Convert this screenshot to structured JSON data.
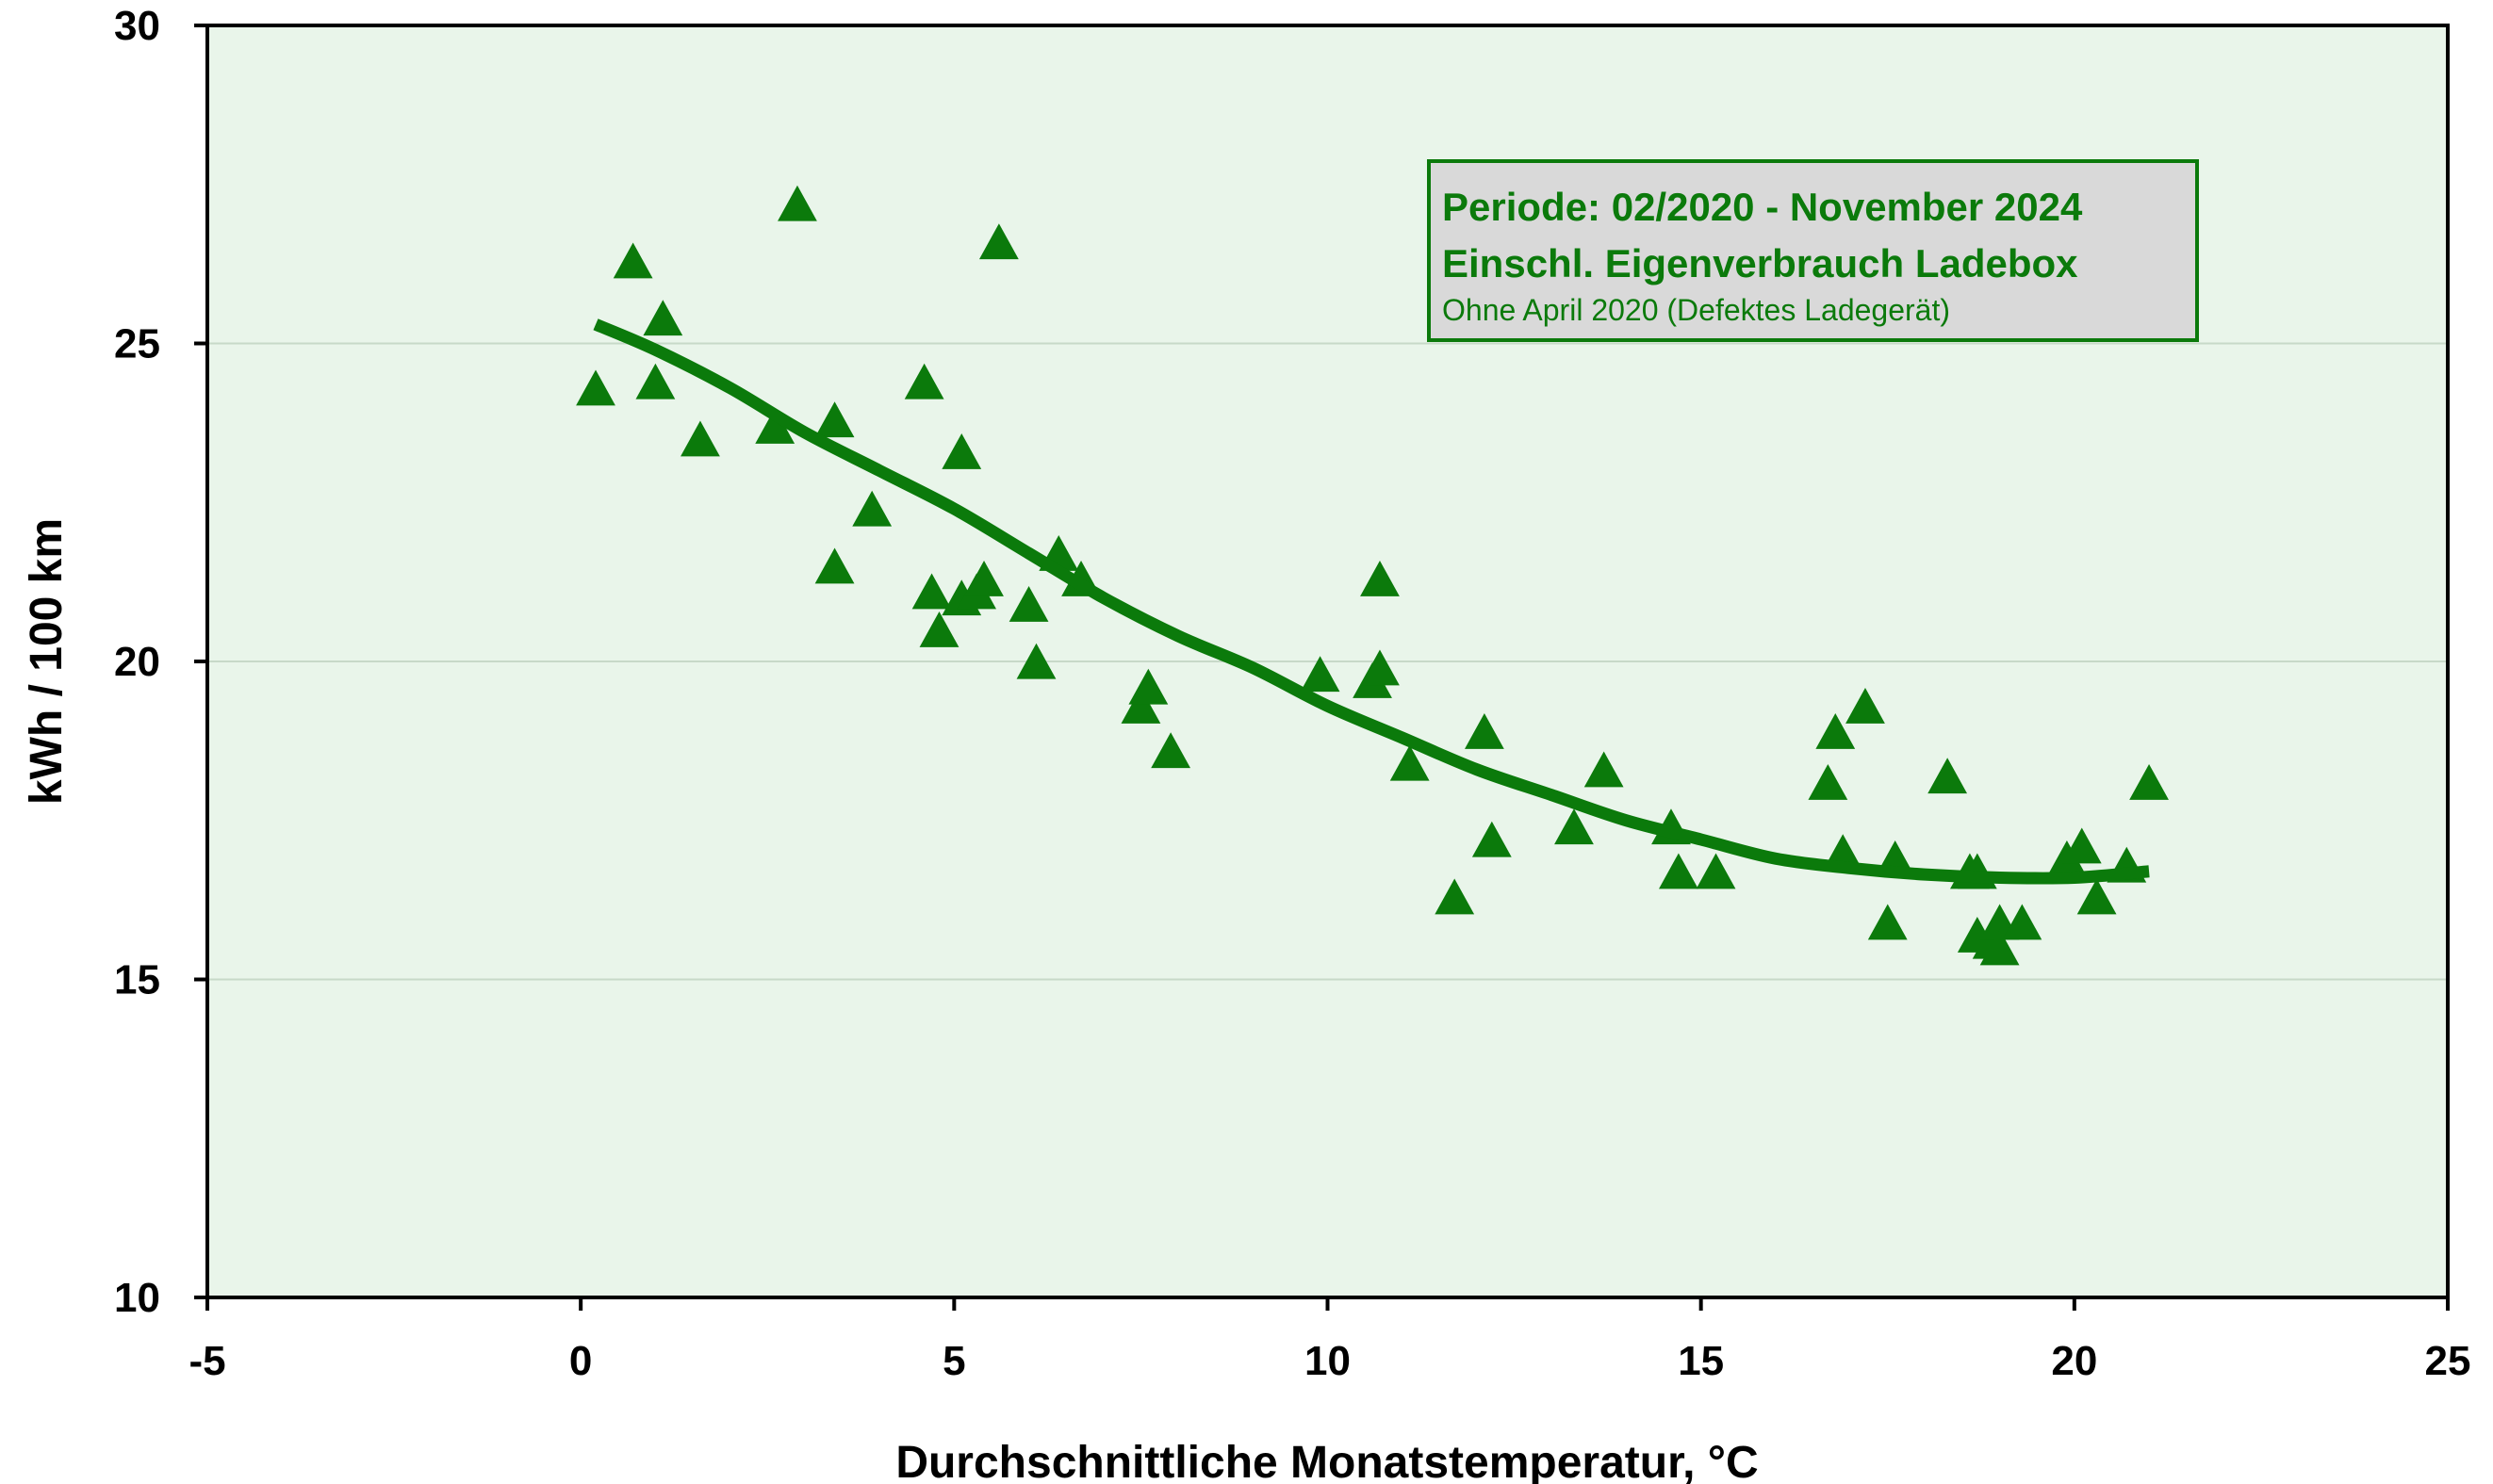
{
  "chart_data": {
    "type": "scatter",
    "title": "",
    "xlabel": "Durchschnittliche Monatstemperatur, °C",
    "ylabel": "kWh / 100 km",
    "xlim": [
      -5,
      25
    ],
    "ylim": [
      10,
      30
    ],
    "xticks": [
      "-5",
      "0",
      "5",
      "10",
      "15",
      "20",
      "25"
    ],
    "yticks": [
      "10",
      "15",
      "20",
      "25",
      "30"
    ],
    "grid": "horizontal",
    "annotation": {
      "line1": "Periode: 02/2020 - November 2024",
      "line2": "Einschl. Eigenverbrauch Ladebox",
      "line3": "Ohne April 2020 (Defektes Ladegerät)",
      "placement": "top-right"
    },
    "colors": {
      "plot_background": "#e9f5ea",
      "marker": "#0b7a0b",
      "trend": "#0b7a0b",
      "annotation_background": "#d9d9d9",
      "annotation_border": "#0b7a0b",
      "gridline": "#c7d9c8"
    },
    "series": [
      {
        "marker": "triangle",
        "points": [
          [
            0.2,
            24.2
          ],
          [
            0.7,
            26.2
          ],
          [
            1.0,
            24.3
          ],
          [
            1.1,
            25.3
          ],
          [
            1.6,
            23.4
          ],
          [
            2.6,
            23.6
          ],
          [
            2.9,
            27.1
          ],
          [
            3.4,
            23.7
          ],
          [
            3.4,
            21.4
          ],
          [
            3.9,
            22.3
          ],
          [
            4.6,
            24.3
          ],
          [
            4.7,
            21.0
          ],
          [
            4.8,
            20.4
          ],
          [
            5.1,
            20.9
          ],
          [
            5.1,
            23.2
          ],
          [
            5.3,
            21.0
          ],
          [
            5.4,
            21.2
          ],
          [
            5.6,
            26.5
          ],
          [
            6.0,
            20.8
          ],
          [
            6.1,
            19.9
          ],
          [
            6.4,
            21.6
          ],
          [
            6.7,
            21.2
          ],
          [
            7.5,
            19.2
          ],
          [
            7.6,
            19.5
          ],
          [
            7.9,
            18.5
          ],
          [
            9.9,
            19.7
          ],
          [
            10.6,
            19.6
          ],
          [
            10.7,
            21.2
          ],
          [
            10.7,
            19.8
          ],
          [
            11.1,
            18.3
          ],
          [
            11.7,
            16.2
          ],
          [
            12.1,
            18.8
          ],
          [
            12.2,
            17.1
          ],
          [
            13.3,
            17.3
          ],
          [
            13.7,
            18.2
          ],
          [
            14.6,
            17.3
          ],
          [
            14.7,
            16.6
          ],
          [
            15.2,
            16.6
          ],
          [
            16.7,
            18.0
          ],
          [
            16.8,
            18.8
          ],
          [
            16.9,
            16.9
          ],
          [
            17.2,
            19.2
          ],
          [
            17.5,
            15.8
          ],
          [
            17.6,
            16.8
          ],
          [
            18.3,
            18.1
          ],
          [
            18.6,
            16.6
          ],
          [
            18.7,
            15.6
          ],
          [
            18.7,
            16.6
          ],
          [
            18.9,
            15.5
          ],
          [
            19.0,
            15.8
          ],
          [
            19.0,
            15.4
          ],
          [
            19.3,
            15.8
          ],
          [
            19.9,
            16.8
          ],
          [
            20.1,
            17.0
          ],
          [
            20.3,
            16.2
          ],
          [
            20.7,
            16.7
          ],
          [
            21.0,
            18.0
          ]
        ]
      }
    ],
    "trendline": {
      "type": "polynomial",
      "points": [
        [
          0.2,
          25.3
        ],
        [
          1,
          24.9
        ],
        [
          2,
          24.3
        ],
        [
          3,
          23.6
        ],
        [
          4,
          23.0
        ],
        [
          5,
          22.4
        ],
        [
          6,
          21.7
        ],
        [
          7,
          21.0
        ],
        [
          8,
          20.4
        ],
        [
          9,
          19.9
        ],
        [
          10,
          19.3
        ],
        [
          11,
          18.8
        ],
        [
          12,
          18.3
        ],
        [
          13,
          17.9
        ],
        [
          14,
          17.5
        ],
        [
          15,
          17.2
        ],
        [
          16,
          16.9
        ],
        [
          17,
          16.75
        ],
        [
          18,
          16.65
        ],
        [
          19,
          16.6
        ],
        [
          20,
          16.6
        ],
        [
          21,
          16.7
        ]
      ]
    }
  }
}
